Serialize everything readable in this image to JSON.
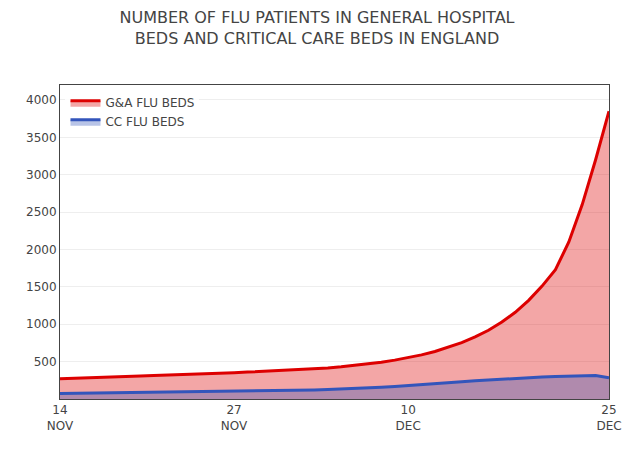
{
  "chart_data": {
    "type": "area",
    "title": "NUMBER OF FLU PATIENTS IN GENERAL HOSPITAL\nBEDS AND CRITICAL CARE BEDS IN ENGLAND",
    "categories": [
      "14\nNOV",
      null,
      null,
      null,
      null,
      null,
      null,
      null,
      null,
      null,
      null,
      null,
      null,
      "27\nNOV",
      null,
      null,
      null,
      null,
      null,
      null,
      null,
      null,
      null,
      null,
      null,
      null,
      "10\nDEC",
      null,
      null,
      null,
      null,
      null,
      null,
      null,
      null,
      null,
      null,
      null,
      null,
      null,
      null,
      "25\nDEC"
    ],
    "series": [
      {
        "name": "G&A FLU BEDS",
        "color": "#dd0000",
        "values": [
          270,
          278,
          285,
          290,
          295,
          300,
          308,
          315,
          320,
          325,
          330,
          338,
          345,
          352,
          360,
          368,
          375,
          383,
          392,
          402,
          415,
          430,
          448,
          468,
          492,
          520,
          552,
          590,
          635,
          690,
          755,
          830,
          920,
          1030,
          1160,
          1320,
          1510,
          1730,
          2100,
          2600,
          3200,
          3850
        ]
      },
      {
        "name": "CC FLU BEDS",
        "color": "#3355bb",
        "values": [
          75,
          77,
          79,
          81,
          83,
          85,
          87,
          89,
          91,
          93,
          95,
          97,
          99,
          101,
          104,
          107,
          110,
          114,
          118,
          122,
          127,
          133,
          140,
          148,
          157,
          167,
          178,
          190,
          203,
          217,
          230,
          243,
          255,
          267,
          278,
          287,
          295,
          302,
          308,
          312,
          315,
          285
        ]
      }
    ],
    "ylim": [
      0,
      4200
    ],
    "yticks": [
      500,
      1000,
      1500,
      2000,
      2500,
      3000,
      3500,
      4000
    ],
    "grid": true,
    "legend": "upper left"
  }
}
